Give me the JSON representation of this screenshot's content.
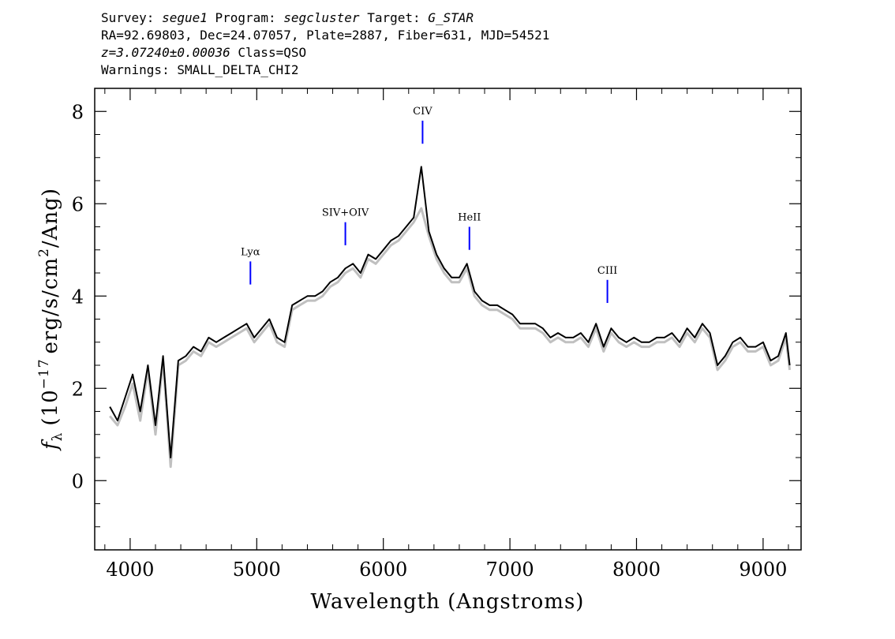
{
  "header": {
    "survey_label": "Survey:",
    "survey": "segue1",
    "program_label": "Program:",
    "program": "segcluster",
    "target_label": "Target:",
    "target": "G_STAR",
    "coords_line": "RA=92.69803, Dec=24.07057, Plate=2887, Fiber=631, MJD=54521",
    "redshift": "z=3.07240±0.00036",
    "class_text": "Class=QSO",
    "warnings_line": "Warnings: SMALL_DELTA_CHI2"
  },
  "chart_data": {
    "type": "line",
    "xlabel": "Wavelength (Angstroms)",
    "ylabel_prefix": "f",
    "ylabel_subscript": "λ",
    "ylabel_units": "(10",
    "ylabel_exponent": "−17",
    "ylabel_units2": "erg/s/cm",
    "ylabel_exponent2": "2",
    "ylabel_units3": "/Ang)",
    "xlim": [
      3720,
      9300
    ],
    "ylim": [
      -1.5,
      8.5
    ],
    "x_ticks": [
      4000,
      5000,
      6000,
      7000,
      8000,
      9000
    ],
    "x_tick_labels": [
      "4000",
      "5000",
      "6000",
      "7000",
      "8000",
      "9000"
    ],
    "y_ticks": [
      0,
      2,
      4,
      6,
      8
    ],
    "y_tick_labels": [
      "0",
      "2",
      "4",
      "6",
      "8"
    ],
    "x_minor_step": 200,
    "y_minor_step": 0.5,
    "grid": false,
    "series": [
      {
        "color": "#c0c0c0",
        "x": [
          3840,
          3900,
          3960,
          4020,
          4080,
          4140,
          4200,
          4260,
          4320,
          4380,
          4440,
          4500,
          4560,
          4620,
          4680,
          4740,
          4800,
          4860,
          4920,
          4980,
          5040,
          5100,
          5160,
          5220,
          5280,
          5340,
          5400,
          5460,
          5520,
          5580,
          5640,
          5700,
          5760,
          5820,
          5880,
          5940,
          6000,
          6060,
          6120,
          6180,
          6240,
          6300,
          6360,
          6420,
          6480,
          6540,
          6600,
          6660,
          6720,
          6780,
          6840,
          6900,
          6960,
          7020,
          7080,
          7140,
          7200,
          7260,
          7320,
          7380,
          7440,
          7500,
          7560,
          7620,
          7680,
          7740,
          7800,
          7860,
          7920,
          7980,
          8040,
          8100,
          8160,
          8220,
          8280,
          8340,
          8400,
          8460,
          8520,
          8580,
          8640,
          8700,
          8760,
          8820,
          8880,
          8940,
          9000,
          9060,
          9120,
          9180,
          9210
        ],
        "y": [
          1.4,
          1.2,
          1.6,
          2.1,
          1.3,
          2.4,
          1.0,
          2.6,
          0.3,
          2.5,
          2.6,
          2.8,
          2.7,
          3.0,
          2.9,
          3.0,
          3.1,
          3.2,
          3.3,
          3.0,
          3.2,
          3.4,
          3.0,
          2.9,
          3.7,
          3.8,
          3.9,
          3.9,
          4.0,
          4.2,
          4.3,
          4.5,
          4.6,
          4.4,
          4.8,
          4.7,
          4.9,
          5.1,
          5.2,
          5.4,
          5.6,
          5.9,
          5.3,
          4.8,
          4.5,
          4.3,
          4.3,
          4.6,
          4.0,
          3.8,
          3.7,
          3.7,
          3.6,
          3.5,
          3.3,
          3.3,
          3.3,
          3.2,
          3.0,
          3.1,
          3.0,
          3.0,
          3.1,
          2.9,
          3.3,
          2.8,
          3.2,
          3.0,
          2.9,
          3.0,
          2.9,
          2.9,
          3.0,
          3.0,
          3.1,
          2.9,
          3.2,
          3.0,
          3.3,
          3.1,
          2.4,
          2.6,
          2.9,
          3.0,
          2.8,
          2.8,
          2.9,
          2.5,
          2.6,
          3.1,
          2.4
        ]
      },
      {
        "color": "#000000",
        "x": [
          3840,
          3900,
          3960,
          4020,
          4080,
          4140,
          4200,
          4260,
          4320,
          4380,
          4440,
          4500,
          4560,
          4620,
          4680,
          4740,
          4800,
          4860,
          4920,
          4980,
          5040,
          5100,
          5160,
          5220,
          5280,
          5340,
          5400,
          5460,
          5520,
          5580,
          5640,
          5700,
          5760,
          5820,
          5880,
          5940,
          6000,
          6060,
          6120,
          6180,
          6240,
          6300,
          6360,
          6420,
          6480,
          6540,
          6600,
          6660,
          6720,
          6780,
          6840,
          6900,
          6960,
          7020,
          7080,
          7140,
          7200,
          7260,
          7320,
          7380,
          7440,
          7500,
          7560,
          7620,
          7680,
          7740,
          7800,
          7860,
          7920,
          7980,
          8040,
          8100,
          8160,
          8220,
          8280,
          8340,
          8400,
          8460,
          8520,
          8580,
          8640,
          8700,
          8760,
          8820,
          8880,
          8940,
          9000,
          9060,
          9120,
          9180,
          9210
        ],
        "y": [
          1.6,
          1.3,
          1.8,
          2.3,
          1.5,
          2.5,
          1.2,
          2.7,
          0.5,
          2.6,
          2.7,
          2.9,
          2.8,
          3.1,
          3.0,
          3.1,
          3.2,
          3.3,
          3.4,
          3.1,
          3.3,
          3.5,
          3.1,
          3.0,
          3.8,
          3.9,
          4.0,
          4.0,
          4.1,
          4.3,
          4.4,
          4.6,
          4.7,
          4.5,
          4.9,
          4.8,
          5.0,
          5.2,
          5.3,
          5.5,
          5.7,
          6.8,
          5.4,
          4.9,
          4.6,
          4.4,
          4.4,
          4.7,
          4.1,
          3.9,
          3.8,
          3.8,
          3.7,
          3.6,
          3.4,
          3.4,
          3.4,
          3.3,
          3.1,
          3.2,
          3.1,
          3.1,
          3.2,
          3.0,
          3.4,
          2.9,
          3.3,
          3.1,
          3.0,
          3.1,
          3.0,
          3.0,
          3.1,
          3.1,
          3.2,
          3.0,
          3.3,
          3.1,
          3.4,
          3.2,
          2.5,
          2.7,
          3.0,
          3.1,
          2.9,
          2.9,
          3.0,
          2.6,
          2.7,
          3.2,
          2.5
        ]
      }
    ],
    "emission_lines": [
      {
        "label": "Lyα",
        "x": 4950,
        "y_top": 4.75,
        "y_bottom": 4.25
      },
      {
        "label": "SIV+OIV",
        "x": 5700,
        "y_top": 5.6,
        "y_bottom": 5.1
      },
      {
        "label": "CIV",
        "x": 6310,
        "y_top": 7.8,
        "y_bottom": 7.3
      },
      {
        "label": "HeII",
        "x": 6680,
        "y_top": 5.5,
        "y_bottom": 5.0
      },
      {
        "label": "CIII",
        "x": 7770,
        "y_top": 4.35,
        "y_bottom": 3.85
      }
    ],
    "emission_line_color": "#0000ff"
  }
}
